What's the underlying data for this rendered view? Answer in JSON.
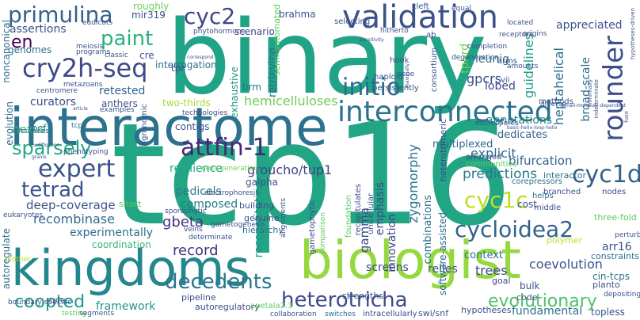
{
  "words": [
    {
      "text": "tcp16",
      "color": "#21a585"
    },
    {
      "text": "binary",
      "color": "#20a386"
    },
    {
      "text": "interactome",
      "color": "#2c718e"
    },
    {
      "text": "kingdoms",
      "color": "#24878e"
    },
    {
      "text": "biologist",
      "color": "#95d840"
    },
    {
      "text": "validation",
      "color": "#3b528b"
    },
    {
      "text": "interconnected",
      "color": "#2c728e"
    },
    {
      "text": "cry2h-seq",
      "color": "#3e4a89"
    },
    {
      "text": "attfin-1",
      "color": "#482677"
    },
    {
      "text": "primulina",
      "color": "#35608d"
    },
    {
      "text": "cyc2",
      "color": "#3f4788"
    },
    {
      "text": "paint",
      "color": "#2db27d"
    },
    {
      "text": "expert",
      "color": "#3b528b"
    },
    {
      "text": "tetrad",
      "color": "#3a548c"
    },
    {
      "text": "sparsely",
      "color": "#22a884"
    },
    {
      "text": "initio",
      "color": "#31688e"
    },
    {
      "text": "cyc1d",
      "color": "#33628d"
    },
    {
      "text": "cyc1c",
      "color": "#bddf26"
    },
    {
      "text": "cycloidea2",
      "color": "#33638d"
    },
    {
      "text": "decedents",
      "color": "#2a768e"
    },
    {
      "text": "heterotricha",
      "color": "#3e4989"
    },
    {
      "text": "coopted",
      "color": "#1f978b"
    },
    {
      "text": "evolutionary",
      "color": "#4ec36b"
    },
    {
      "text": "rounder",
      "color": "#3d4e8a"
    },
    {
      "text": "en",
      "color": "#440154"
    },
    {
      "text": "deep-coverage",
      "color": "#39568c"
    },
    {
      "text": "recombinase",
      "color": "#31688e"
    },
    {
      "text": "experimentally",
      "color": "#2f6c8e"
    },
    {
      "text": "gbeta",
      "color": "#46327e"
    },
    {
      "text": "composed",
      "color": "#287d8e"
    },
    {
      "text": "pedicels",
      "color": "#2a788e"
    },
    {
      "text": "groucho/tup1",
      "color": "#404588"
    },
    {
      "text": "predictions",
      "color": "#2a788e"
    },
    {
      "text": "bifurcation",
      "color": "#33638d"
    },
    {
      "text": "explicit",
      "color": "#2f6c8e"
    },
    {
      "text": "hemicelluloses",
      "color": "#6ece58"
    },
    {
      "text": "retested",
      "color": "#33628d"
    },
    {
      "text": "two-thirds",
      "color": "#a8db34"
    },
    {
      "text": "heptahelical",
      "color": "#2c718e"
    },
    {
      "text": "guidelines",
      "color": "#1fa088"
    },
    {
      "text": "broad-scale",
      "color": "#2f6c8e"
    },
    {
      "text": "annotations",
      "color": "#238a8d"
    },
    {
      "text": "coevolution",
      "color": "#3a548c"
    },
    {
      "text": "record",
      "color": "#46327e"
    },
    {
      "text": "resilience",
      "color": "#22a884"
    },
    {
      "text": "multiplexed",
      "color": "#31688e"
    },
    {
      "text": "dedicates",
      "color": "#33638d"
    },
    {
      "text": "lobed",
      "color": "#3e4989"
    },
    {
      "text": "gpcrs",
      "color": "#3e4a89"
    },
    {
      "text": "leunig",
      "color": "#2c718e"
    },
    {
      "text": "tpl-rd",
      "color": "#75d054"
    },
    {
      "text": "zygomorphy",
      "color": "#2c718e"
    },
    {
      "text": "gamma",
      "color": "#3e4a89"
    },
    {
      "text": "emphasis",
      "color": "#3e4a89"
    },
    {
      "text": "innovation",
      "color": "#404588"
    },
    {
      "text": "combinations",
      "color": "#2c718e"
    },
    {
      "text": "software-assisted",
      "color": "#2f6c8e"
    },
    {
      "text": "reconstituting",
      "color": "#1f968b"
    },
    {
      "text": "retrieving",
      "color": "#2c718e"
    },
    {
      "text": "exhaustive",
      "color": "#20928c"
    },
    {
      "text": "semi-automated",
      "color": "#5ec962"
    },
    {
      "text": "brm",
      "color": "#2c718e"
    },
    {
      "text": "scenario",
      "color": "#3e4989"
    },
    {
      "text": "brahma",
      "color": "#3b528b"
    },
    {
      "text": "mir319",
      "color": "#3b528b"
    },
    {
      "text": "roughly",
      "color": "#6ece58"
    },
    {
      "text": "assertions",
      "color": "#3b528b"
    },
    {
      "text": "genomes",
      "color": "#2c718e"
    },
    {
      "text": "cre",
      "color": "#3b528b"
    },
    {
      "text": "interrogation",
      "color": "#2c718e"
    },
    {
      "text": "tpr",
      "color": "#3e4a89"
    },
    {
      "text": "noncanonical",
      "color": "#2c718e"
    },
    {
      "text": "curators",
      "color": "#3e4989"
    },
    {
      "text": "anthers",
      "color": "#3b528b"
    },
    {
      "text": "evolution",
      "color": "#2c718e"
    },
    {
      "text": "pcf",
      "color": "#2c718e"
    },
    {
      "text": "tcp4",
      "color": "#2c718e"
    },
    {
      "text": "agronomic",
      "color": "#3b528b"
    },
    {
      "text": "contigs",
      "color": "#3b528b"
    },
    {
      "text": "nexus",
      "color": "#35b779"
    },
    {
      "text": "inferences",
      "color": "#2c718e"
    },
    {
      "text": "next-generation",
      "color": "#6ece58"
    },
    {
      "text": "galpha",
      "color": "#3b528b"
    },
    {
      "text": "eukaryotes",
      "color": "#3b528b"
    },
    {
      "text": "short",
      "color": "#5ec962"
    },
    {
      "text": "building",
      "color": "#3b528b"
    },
    {
      "text": "genuine",
      "color": "#3e4a89"
    },
    {
      "text": "hierarchy",
      "color": "#2c718e"
    },
    {
      "text": "coordination",
      "color": "#35b779"
    },
    {
      "text": "autoregulate",
      "color": "#2c718e"
    },
    {
      "text": "pipeline",
      "color": "#3b528b"
    },
    {
      "text": "framework",
      "color": "#1f968b"
    },
    {
      "text": "autoregulatory",
      "color": "#3e4a89"
    },
    {
      "text": "apetala2.3",
      "color": "#5ec962"
    },
    {
      "text": "collaboration",
      "color": "#3b528b"
    },
    {
      "text": "switches",
      "color": "#2c718e"
    },
    {
      "text": "intracellularly",
      "color": "#3e4a89"
    },
    {
      "text": "swi/snf",
      "color": "#3b528b"
    },
    {
      "text": "hypotheses",
      "color": "#3b528b"
    },
    {
      "text": "fundamental",
      "color": "#2c718e"
    },
    {
      "text": "topless",
      "color": "#3b528b"
    },
    {
      "text": "screens",
      "color": "#3e4a89"
    },
    {
      "text": "strengths",
      "color": "#3b528b"
    },
    {
      "text": "relies",
      "color": "#3b528b"
    },
    {
      "text": "trees",
      "color": "#3e4a89"
    },
    {
      "text": "context",
      "color": "#2c718e"
    },
    {
      "text": "bulk",
      "color": "#3b528b"
    },
    {
      "text": "code",
      "color": "#3b528b"
    },
    {
      "text": "goal",
      "color": "#3e4a89"
    },
    {
      "text": "planto",
      "color": "#3b528b"
    },
    {
      "text": "depositing",
      "color": "#3b528b"
    },
    {
      "text": "cin-tcps",
      "color": "#2c718e"
    },
    {
      "text": "arr16",
      "color": "#3b528b"
    },
    {
      "text": "perturb",
      "color": "#3b528b"
    },
    {
      "text": "constraints",
      "color": "#2c718e"
    },
    {
      "text": "three-fold",
      "color": "#5ec962"
    },
    {
      "text": "polymer",
      "color": "#bddf26"
    },
    {
      "text": "cost",
      "color": "#3b528b"
    },
    {
      "text": "middle",
      "color": "#3b528b"
    },
    {
      "text": "helps",
      "color": "#2c718e"
    },
    {
      "text": "branched",
      "color": "#3b528b"
    },
    {
      "text": "interactor",
      "color": "#2c718e"
    },
    {
      "text": "nodes",
      "color": "#3b528b"
    },
    {
      "text": "arranged",
      "color": "#3b528b"
    },
    {
      "text": "communities",
      "color": "#5ec962"
    },
    {
      "text": "corepressors",
      "color": "#2c718e"
    },
    {
      "text": "heterotrimeric",
      "color": "#3e4a89"
    },
    {
      "text": "consortium",
      "color": "#3b528b"
    },
    {
      "text": "hook",
      "color": "#3e4a89"
    },
    {
      "text": "haploid",
      "color": "#3b528b"
    },
    {
      "text": "persistently",
      "color": "#3b528b"
    },
    {
      "text": "selecting",
      "color": "#3b528b"
    },
    {
      "text": "cleft",
      "color": "#3b528b"
    },
    {
      "text": "ab",
      "color": "#3e4a89"
    },
    {
      "text": "appreciated",
      "color": "#3b528b"
    },
    {
      "text": "arms",
      "color": "#3b528b"
    },
    {
      "text": "vii",
      "color": "#3b528b"
    },
    {
      "text": "diverse",
      "color": "#3b528b"
    },
    {
      "text": "methods",
      "color": "#3b528b"
    },
    {
      "text": "microspores",
      "color": "#3b528b"
    },
    {
      "text": "phenotyping",
      "color": "#3b528b"
    },
    {
      "text": "electrophoresis",
      "color": "#3b528b"
    },
    {
      "text": "sporophytic",
      "color": "#3b528b"
    },
    {
      "text": "veins",
      "color": "#3b528b"
    },
    {
      "text": "determinate",
      "color": "#3b528b"
    },
    {
      "text": "gametogenesis",
      "color": "#3b528b"
    },
    {
      "text": "alignments",
      "color": "#3b528b"
    },
    {
      "text": "gametophytic",
      "color": "#3b528b"
    },
    {
      "text": "comparison",
      "color": "#5ec962"
    },
    {
      "text": "foundation",
      "color": "#5ec962"
    },
    {
      "text": "recapitulates",
      "color": "#3b528b"
    },
    {
      "text": "uniceiluiar",
      "color": "#3b528b"
    },
    {
      "text": "mother",
      "color": "#bddf26"
    },
    {
      "text": "boundary-specific",
      "color": "#3b528b"
    },
    {
      "text": "core",
      "color": "#3b528b"
    },
    {
      "text": "testing",
      "color": "#5ec962"
    },
    {
      "text": "segments",
      "color": "#3b528b"
    },
    {
      "text": "technologies",
      "color": "#3b528b"
    },
    {
      "text": "examples",
      "color": "#3b528b"
    },
    {
      "text": "metazoans",
      "color": "#3b528b"
    },
    {
      "text": "centromere",
      "color": "#3b528b"
    },
    {
      "text": "eudicots",
      "color": "#3b528b"
    },
    {
      "text": "meiosis",
      "color": "#3b528b"
    },
    {
      "text": "programs",
      "color": "#3b528b"
    },
    {
      "text": "classic",
      "color": "#3b528b"
    },
    {
      "text": "phytohormone",
      "color": "#3b528b"
    },
    {
      "text": "hitherto",
      "color": "#3b528b"
    },
    {
      "text": "equal",
      "color": "#3b528b"
    },
    {
      "text": "located",
      "color": "#3b528b"
    },
    {
      "text": "degeneration",
      "color": "#3b528b"
    },
    {
      "text": "completion",
      "color": "#3b528b"
    },
    {
      "text": "receptors",
      "color": "#3b528b"
    },
    {
      "text": "origins",
      "color": "#3b528b"
    },
    {
      "text": "issue",
      "color": "#3b528b"
    },
    {
      "text": "amounts",
      "color": "#3b528b"
    },
    {
      "text": "small-molecule-dependent",
      "color": "#3b528b"
    },
    {
      "text": "basic-helix-loop-helix",
      "color": "#3b528b"
    },
    {
      "text": "fuse",
      "color": "#3b528b"
    },
    {
      "text": "modification",
      "color": "#3b528b"
    },
    {
      "text": "grains",
      "color": "#3b528b"
    },
    {
      "text": "correspond",
      "color": "#3b528b"
    },
    {
      "text": "article",
      "color": "#3b528b"
    },
    {
      "text": "sensitivity",
      "color": "#3b528b"
    },
    {
      "text": "maximally",
      "color": "#3b528b"
    },
    {
      "text": "minimally",
      "color": "#3b528b"
    },
    {
      "text": "indeterminate",
      "color": "#3b528b"
    },
    {
      "text": "hypotheses-driven",
      "color": "#3b528b"
    }
  ]
}
